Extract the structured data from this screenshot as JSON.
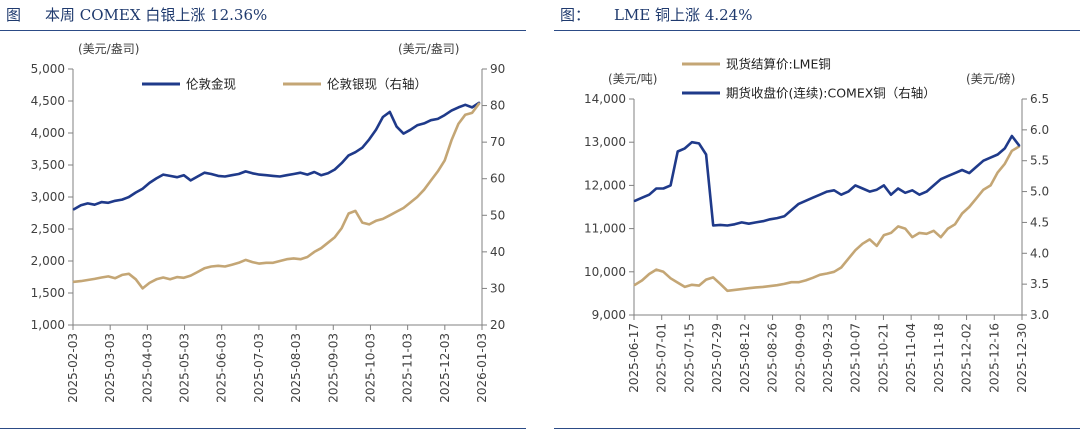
{
  "chart_data": [
    {
      "id": "left",
      "type": "line",
      "caption_prefix": "图",
      "title": "本周 COMEX 白银上涨 12.36%",
      "left_unit": "(美元/盎司)",
      "right_unit": "(美元/盎司)",
      "yleft": {
        "min": 1000,
        "max": 5000,
        "ticks": [
          "1,000",
          "1,500",
          "2,000",
          "2,500",
          "3,000",
          "3,500",
          "4,000",
          "4,500",
          "5,000"
        ]
      },
      "yright": {
        "min": 20,
        "max": 90,
        "ticks": [
          "20",
          "30",
          "40",
          "50",
          "60",
          "70",
          "80",
          "90"
        ]
      },
      "x_tick_labels": [
        "2025-02-03",
        "2025-03-03",
        "2025-04-03",
        "2025-05-03",
        "2025-06-03",
        "2025-07-03",
        "2025-08-03",
        "2025-09-03",
        "2025-10-03",
        "2025-11-03",
        "2025-12-03",
        "2026-01-03"
      ],
      "series": [
        {
          "name": "伦敦金现",
          "axis": "left",
          "color": "#1f3a8a",
          "values": [
            2810,
            2870,
            2900,
            2880,
            2920,
            2910,
            2940,
            2960,
            3000,
            3070,
            3130,
            3220,
            3290,
            3350,
            3330,
            3310,
            3340,
            3260,
            3320,
            3380,
            3360,
            3330,
            3320,
            3340,
            3360,
            3400,
            3370,
            3350,
            3340,
            3330,
            3320,
            3340,
            3360,
            3380,
            3350,
            3390,
            3340,
            3370,
            3430,
            3530,
            3650,
            3700,
            3770,
            3900,
            4050,
            4250,
            4330,
            4100,
            3990,
            4050,
            4120,
            4150,
            4200,
            4220,
            4280,
            4350,
            4400,
            4440,
            4400,
            4470
          ]
        },
        {
          "name": "伦敦银现（右轴）",
          "axis": "right",
          "color": "#c4a675",
          "values": [
            31.8,
            32.0,
            32.3,
            32.6,
            33.0,
            33.3,
            32.8,
            33.7,
            34.0,
            32.5,
            30.0,
            31.5,
            32.5,
            33.0,
            32.5,
            33.1,
            32.9,
            33.5,
            34.5,
            35.5,
            36.0,
            36.2,
            36.0,
            36.5,
            37.0,
            37.8,
            37.2,
            36.8,
            37.0,
            37.0,
            37.5,
            38.0,
            38.2,
            38.0,
            38.6,
            40.0,
            41.0,
            42.5,
            44.0,
            46.5,
            50.5,
            51.2,
            48.0,
            47.5,
            48.5,
            49.0,
            50.0,
            51.0,
            52.0,
            53.5,
            55.0,
            57.0,
            59.5,
            62.0,
            65.0,
            70.5,
            75.0,
            77.5,
            78.0,
            80.5
          ]
        }
      ]
    },
    {
      "id": "right",
      "type": "line",
      "caption_prefix": "图：",
      "title": "LME 铜上涨 4.24%",
      "left_unit": "(美元/吨)",
      "right_unit": "(美元/磅)",
      "yleft": {
        "min": 9000,
        "max": 14000,
        "ticks": [
          "9,000",
          "10,000",
          "11,000",
          "12,000",
          "13,000",
          "14,000"
        ]
      },
      "yright": {
        "min": 3.0,
        "max": 6.5,
        "ticks": [
          "3.0",
          "3.5",
          "4.0",
          "4.5",
          "5.0",
          "5.5",
          "6.0",
          "6.5"
        ]
      },
      "x_tick_labels": [
        "2025-06-17",
        "2025-07-01",
        "2025-07-15",
        "2025-07-29",
        "2025-08-12",
        "2025-08-26",
        "2025-09-09",
        "2025-09-23",
        "2025-10-07",
        "2025-10-21",
        "2025-11-04",
        "2025-11-18",
        "2025-12-02",
        "2025-12-16",
        "2025-12-30"
      ],
      "series": [
        {
          "name": "现货结算价:LME铜",
          "axis": "left",
          "color": "#c4a675",
          "values": [
            9700,
            9800,
            9950,
            10050,
            10000,
            9850,
            9750,
            9650,
            9700,
            9680,
            9820,
            9870,
            9720,
            9560,
            9580,
            9600,
            9620,
            9640,
            9650,
            9670,
            9690,
            9720,
            9760,
            9760,
            9800,
            9860,
            9930,
            9960,
            10000,
            10100,
            10300,
            10500,
            10650,
            10750,
            10600,
            10850,
            10900,
            11050,
            11000,
            10800,
            10900,
            10880,
            10950,
            10800,
            11000,
            11100,
            11350,
            11500,
            11700,
            11900,
            12000,
            12300,
            12500,
            12800,
            12900
          ]
        },
        {
          "name": "期货收盘价(连续):COMEX铜（右轴）",
          "axis": "right",
          "color": "#1f3a8a",
          "values": [
            4.85,
            4.9,
            4.95,
            5.05,
            5.05,
            5.1,
            5.65,
            5.7,
            5.8,
            5.78,
            5.6,
            4.45,
            4.46,
            4.45,
            4.47,
            4.5,
            4.48,
            4.5,
            4.52,
            4.55,
            4.57,
            4.6,
            4.7,
            4.8,
            4.85,
            4.9,
            4.95,
            5.0,
            5.02,
            4.95,
            5.0,
            5.1,
            5.05,
            5.0,
            5.03,
            5.1,
            4.95,
            5.05,
            4.98,
            5.02,
            4.95,
            5.0,
            5.1,
            5.2,
            5.25,
            5.3,
            5.35,
            5.3,
            5.4,
            5.5,
            5.55,
            5.6,
            5.7,
            5.9,
            5.75
          ]
        }
      ]
    }
  ]
}
